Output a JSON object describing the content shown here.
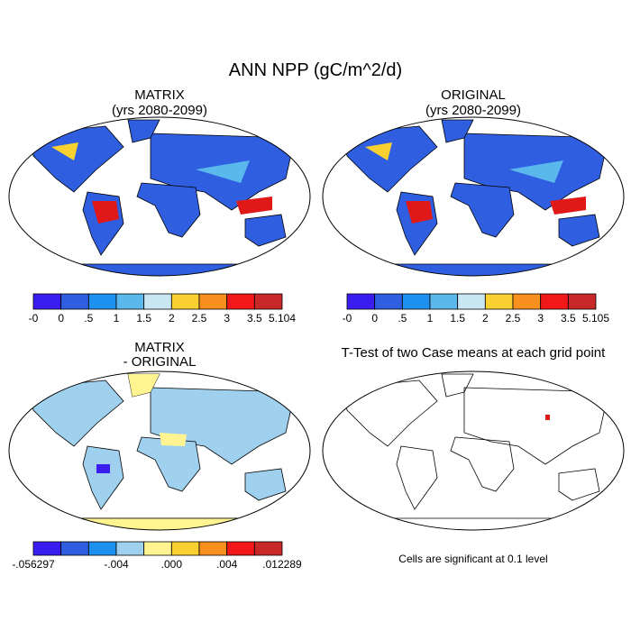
{
  "title": "ANN NPP (gC/m^2/d)",
  "panels": [
    {
      "title": "MATRIX",
      "subtitle": "(yrs 2080-2099)",
      "colorbar": {
        "labels": [
          "-0",
          "0",
          ".5",
          "1",
          "1.5",
          "2",
          "2.5",
          "3",
          "3.5",
          "5.104"
        ],
        "colors": [
          "#3a1df0",
          "#2f5fe0",
          "#1e90f0",
          "#5ab8ec",
          "#c8e6f4",
          "#f8d030",
          "#f89020",
          "#f01818",
          "#c82828"
        ]
      }
    },
    {
      "title": "ORIGINAL",
      "subtitle": "(yrs 2080-2099)",
      "colorbar": {
        "labels": [
          "-0",
          "0",
          ".5",
          "1",
          "1.5",
          "2",
          "2.5",
          "3",
          "3.5",
          "5.105"
        ],
        "colors": [
          "#3a1df0",
          "#2f5fe0",
          "#1e90f0",
          "#5ab8ec",
          "#c8e6f4",
          "#f8d030",
          "#f89020",
          "#f01818",
          "#c82828"
        ]
      }
    },
    {
      "title": "MATRIX",
      "subtitle": "- ORIGINAL",
      "colorbar": {
        "labels": [
          "-.056297",
          null,
          null,
          "-.004",
          null,
          ".000",
          null,
          ".004",
          null,
          ".012289"
        ],
        "colors": [
          "#3a1df0",
          "#2f5fe0",
          "#1e90f0",
          "#9fd0ee",
          "#fff490",
          "#f8d030",
          "#f89020",
          "#f01818",
          "#c82828"
        ]
      }
    }
  ],
  "ttest": {
    "title": "T-Test of two Case means at each grid point",
    "note": "Cells are significant at 0.1 level"
  }
}
